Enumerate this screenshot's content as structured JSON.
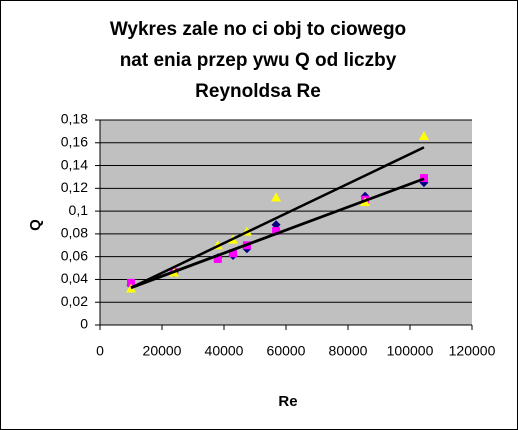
{
  "chart_data": {
    "type": "scatter",
    "title": [
      "Wykres zale  no  ci obj  to  ciowego",
      "nat    enia przep ywu Q od liczby",
      "Reynoldsa Re"
    ],
    "x_label": "Re",
    "y_label": "Q",
    "x": [
      10000,
      23900,
      38000,
      42900,
      47400,
      56800,
      85500,
      104500
    ],
    "series": [
      {
        "color": "#000080",
        "marker": "diamond",
        "values": [
          0.035,
          0.046,
          0.059,
          0.061,
          0.067,
          0.088,
          0.113,
          0.125
        ]
      },
      {
        "color": "#ff00ff",
        "marker": "square",
        "values": [
          0.037,
          0.0465,
          0.058,
          0.063,
          0.07,
          0.0825,
          0.11,
          0.129
        ]
      },
      {
        "color": "#ffff00",
        "marker": "triangle",
        "values": [
          0.032,
          0.046,
          0.07,
          0.075,
          0.082,
          0.112,
          0.108,
          0.166
        ]
      }
    ],
    "trendline": true,
    "xlim": [
      0,
      120000
    ],
    "xticks": [
      0,
      20000,
      40000,
      60000,
      80000,
      100000,
      120000
    ],
    "ylim": [
      0,
      0.18
    ],
    "yticks": [
      0,
      {
        "value": 0.02,
        "label": "0,02"
      },
      {
        "value": 0.04,
        "label": "0,04"
      },
      {
        "value": 0.06,
        "label": "0,06"
      },
      {
        "value": 0.08,
        "label": "0,08"
      },
      {
        "value": 0.1,
        "label": "0,1"
      },
      {
        "value": 0.12,
        "label": "0,12"
      },
      {
        "value": 0.14,
        "label": "0,14"
      },
      {
        "value": 0.16,
        "label": "0,16"
      },
      {
        "value": 0.18,
        "label": "0,18"
      }
    ],
    "grid": true,
    "plot_background": "#c0c0c0"
  }
}
